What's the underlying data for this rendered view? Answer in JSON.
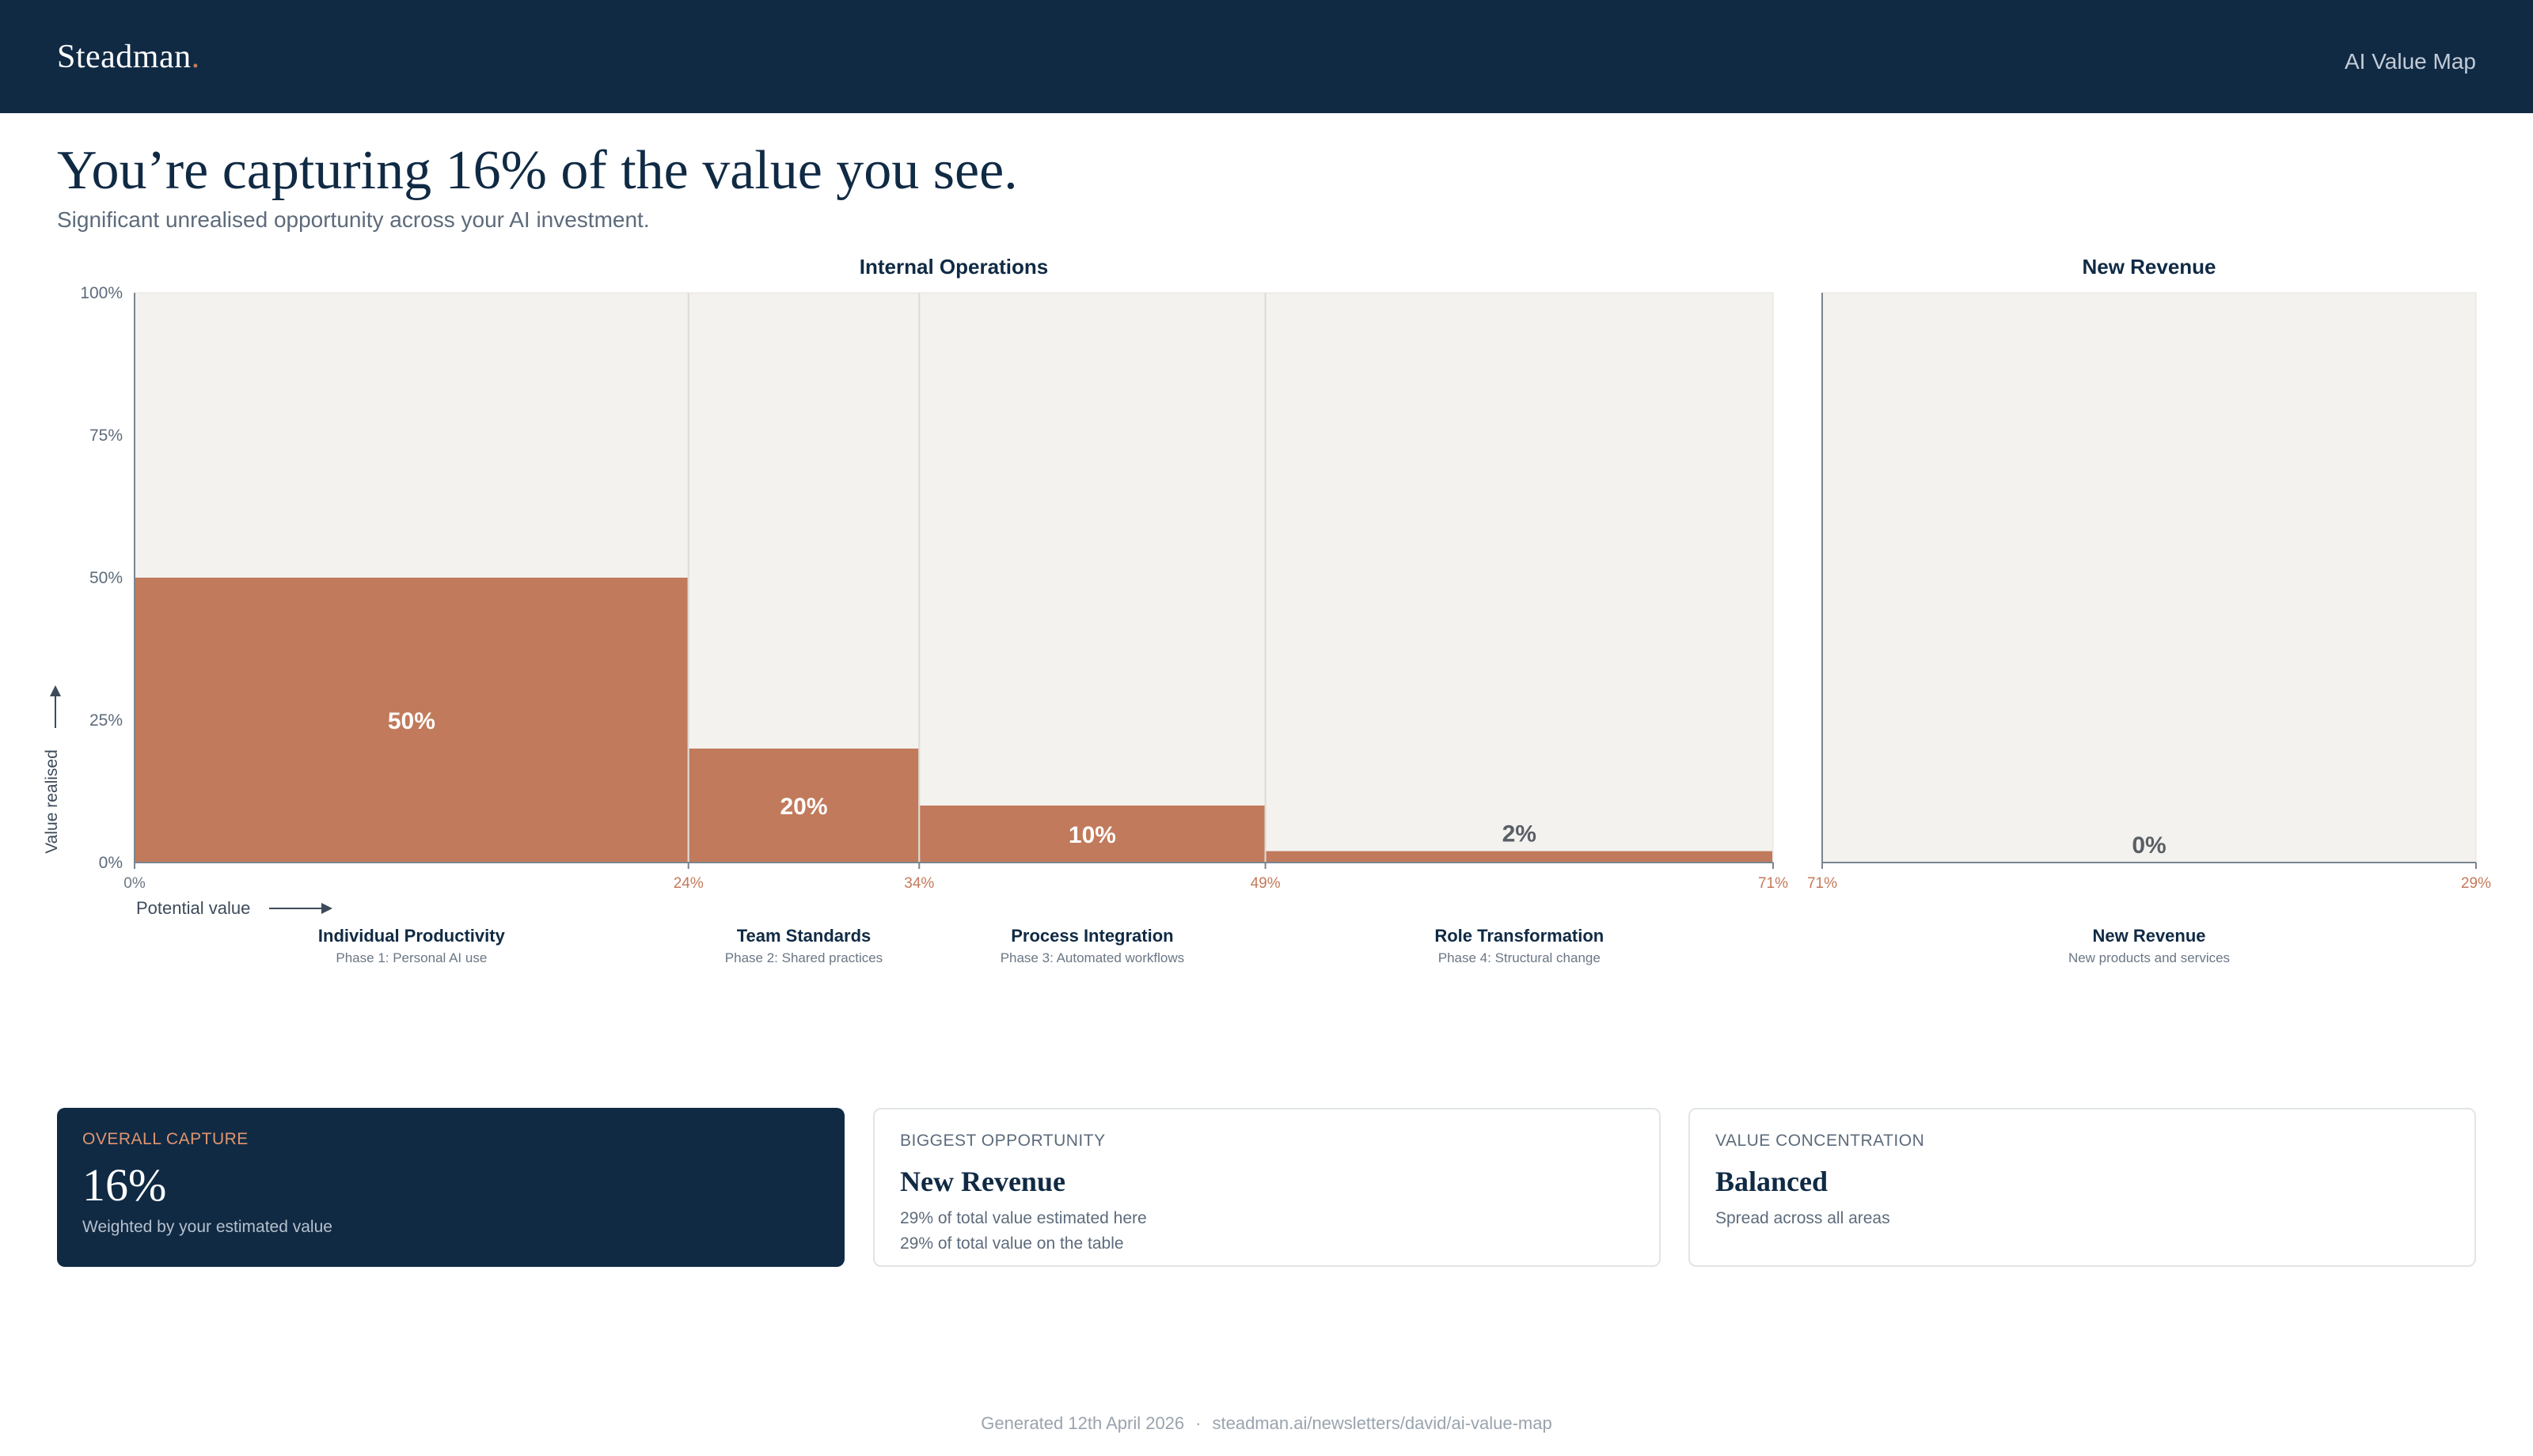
{
  "header": {
    "brand": "Steadman",
    "brand_dot": ".",
    "nav_link": "AI Value Map"
  },
  "hero": {
    "title": "You’re capturing 16% of the value you see.",
    "subtitle": "Significant unrealised opportunity across your AI investment."
  },
  "chart_data": {
    "type": "bar",
    "variant": "variable-width (marimekko) bar",
    "y_axis": {
      "label": "Value realised",
      "ticks": [
        "0%",
        "25%",
        "50%",
        "75%",
        "100%"
      ],
      "ylim": [
        0,
        100
      ]
    },
    "x_axis": {
      "label": "Potential value"
    },
    "grid": false,
    "panels": [
      {
        "title": "Internal Operations",
        "x_range": [
          0,
          71
        ],
        "x_ticks": [
          "0%",
          "24%",
          "34%",
          "49%",
          "71%"
        ],
        "segments": [
          {
            "name": "Individual Productivity",
            "subtitle": "Phase 1: Personal AI use",
            "x_start": 0,
            "x_end": 24,
            "value": 50,
            "label": "50%"
          },
          {
            "name": "Team Standards",
            "subtitle": "Phase 2: Shared practices",
            "x_start": 24,
            "x_end": 34,
            "value": 20,
            "label": "20%"
          },
          {
            "name": "Process Integration",
            "subtitle": "Phase 3: Automated workflows",
            "x_start": 34,
            "x_end": 49,
            "value": 10,
            "label": "10%"
          },
          {
            "name": "Role Transformation",
            "subtitle": "Phase 4: Structural change",
            "x_start": 49,
            "x_end": 71,
            "value": 2,
            "label": "2%"
          }
        ]
      },
      {
        "title": "New Revenue",
        "x_range": [
          71,
          100
        ],
        "x_ticks": [
          "71%",
          "29%"
        ],
        "segments": [
          {
            "name": "New Revenue",
            "subtitle": "New products and services",
            "x_start": 71,
            "x_end": 100,
            "value": 0,
            "label": "0%"
          }
        ]
      }
    ],
    "colors": {
      "bar": "#c17a5b",
      "panel_bg": "#f3f2ef",
      "x_tick": "#c47a5a",
      "axis": "#7a8591",
      "title": "#102a44"
    }
  },
  "cards": [
    {
      "label": "OVERALL CAPTURE",
      "value": "16%",
      "lines": [
        "Weighted by your estimated value"
      ],
      "style": "dark"
    },
    {
      "label": "BIGGEST OPPORTUNITY",
      "value": "New Revenue",
      "lines": [
        "29% of total value estimated here",
        "29% of total value on the table"
      ],
      "style": "light"
    },
    {
      "label": "VALUE CONCENTRATION",
      "value": "Balanced",
      "lines": [
        "Spread across all areas"
      ],
      "style": "light"
    }
  ],
  "footer": {
    "generated": "Generated 12th April 2026",
    "separator": "·",
    "url": "steadman.ai/newsletters/david/ai-value-map"
  }
}
